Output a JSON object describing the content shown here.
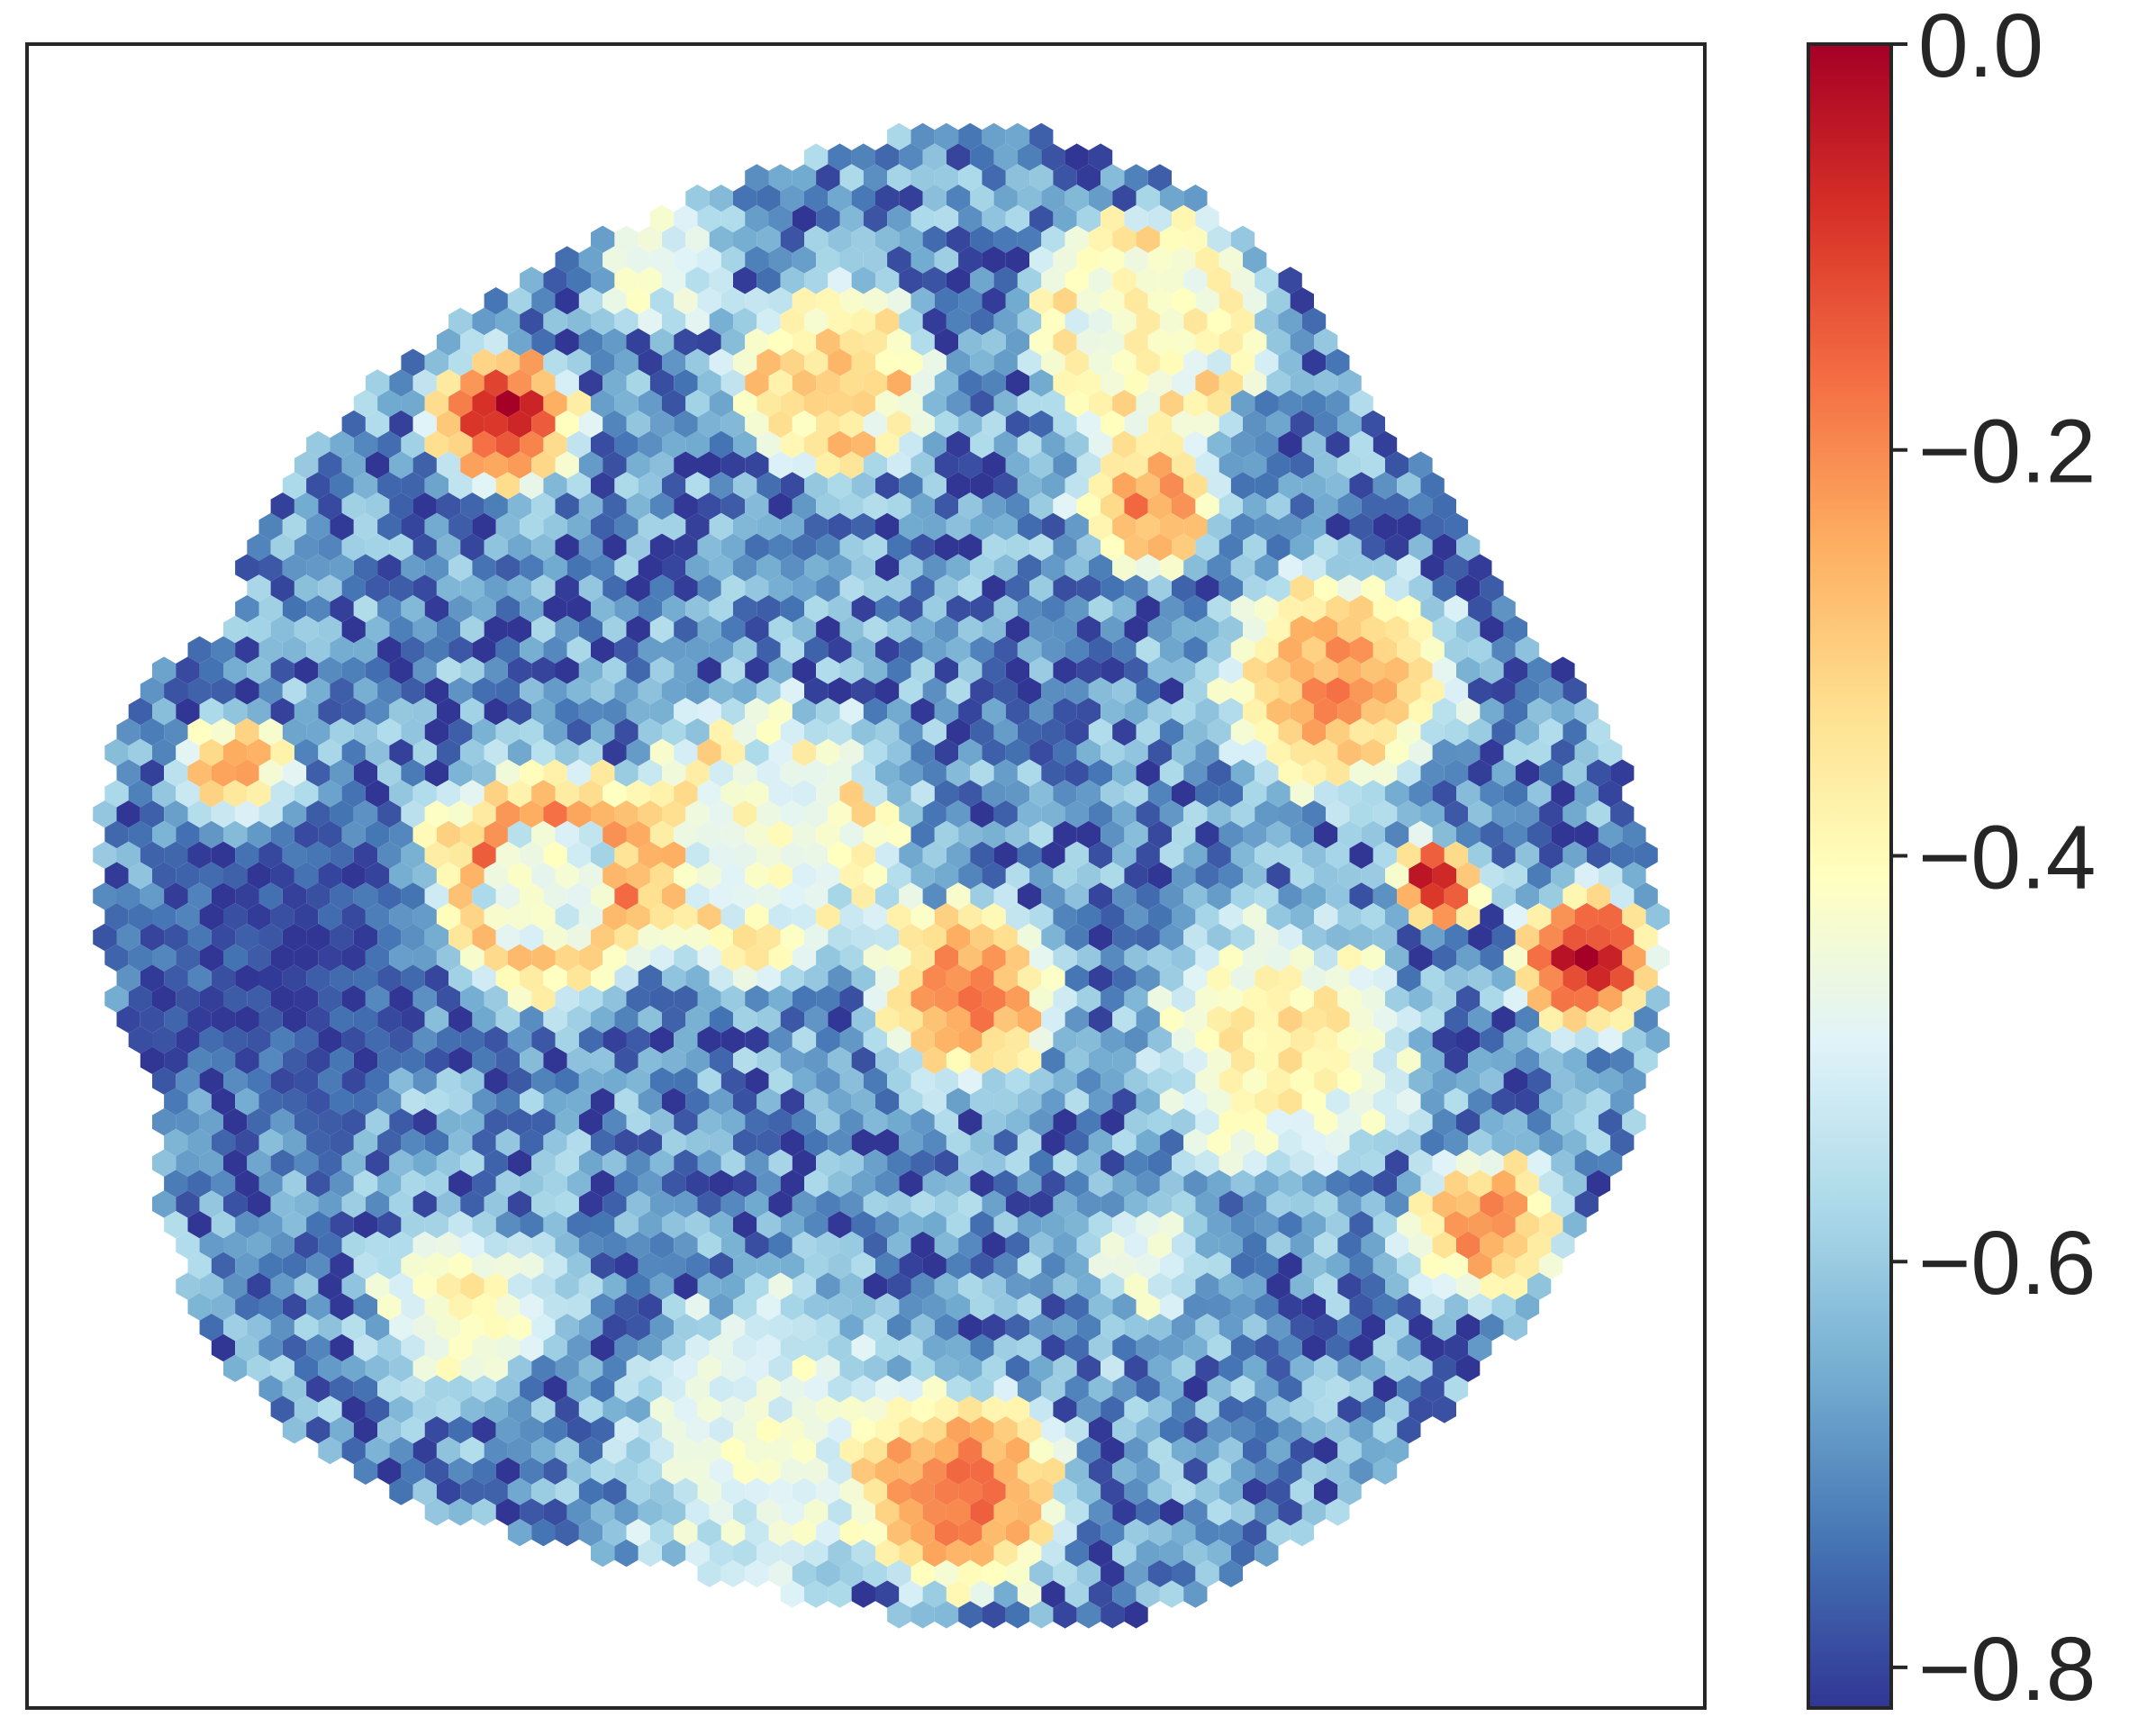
{
  "chart_data": {
    "type": "heatmap",
    "subtype": "hexbin spatial map",
    "title": "",
    "xlabel": "",
    "ylabel": "",
    "axes_ticks": "none",
    "grid": false,
    "colormap": "RdYlBu_r",
    "colorbar": {
      "position": "right",
      "range": [
        -0.82,
        0.0
      ],
      "ticks": [
        0.0,
        -0.2,
        -0.4,
        -0.6,
        -0.8
      ],
      "tick_labels": [
        "0.0",
        "−0.2",
        "−0.4",
        "−0.6",
        "−0.8"
      ]
    },
    "colors": {
      "low": "#313695",
      "mid": "#ffffbf",
      "high": "#a50026",
      "frame": "#262626",
      "gap": "#ffffff"
    },
    "background_value": -0.7,
    "regions": [
      {
        "name": "top-left red blob",
        "cx": 0.285,
        "cy": 0.225,
        "r": 0.055,
        "value": -0.03
      },
      {
        "name": "top ring",
        "cx": 0.38,
        "cy": 0.135,
        "r": 0.05,
        "value": -0.35,
        "hollow": true
      },
      {
        "name": "top center blob",
        "cx": 0.48,
        "cy": 0.2,
        "r": 0.07,
        "value": -0.12,
        "core_value": -0.3
      },
      {
        "name": "top right blob",
        "cx": 0.67,
        "cy": 0.17,
        "r": 0.085,
        "value": -0.15,
        "core_value": -0.38
      },
      {
        "name": "upper right oval",
        "cx": 0.67,
        "cy": 0.275,
        "r": 0.055,
        "value": -0.2
      },
      {
        "name": "right middle blob",
        "cx": 0.78,
        "cy": 0.385,
        "r": 0.09,
        "value": -0.22
      },
      {
        "name": "far right red",
        "cx": 0.93,
        "cy": 0.55,
        "r": 0.055,
        "value": -0.04
      },
      {
        "name": "right small red",
        "cx": 0.84,
        "cy": 0.505,
        "r": 0.035,
        "value": -0.03
      },
      {
        "name": "left small blob",
        "cx": 0.125,
        "cy": 0.44,
        "r": 0.045,
        "value": -0.16
      },
      {
        "name": "left ring",
        "cx": 0.31,
        "cy": 0.505,
        "r": 0.09,
        "value": -0.08,
        "hollow": true
      },
      {
        "name": "center ring",
        "cx": 0.44,
        "cy": 0.48,
        "r": 0.1,
        "value": -0.18,
        "core_value": -0.42
      },
      {
        "name": "center right blob",
        "cx": 0.56,
        "cy": 0.57,
        "r": 0.07,
        "value": -0.17
      },
      {
        "name": "right center yellow",
        "cx": 0.75,
        "cy": 0.6,
        "r": 0.1,
        "value": -0.35
      },
      {
        "name": "bottom right orange",
        "cx": 0.87,
        "cy": 0.71,
        "r": 0.06,
        "value": -0.2
      },
      {
        "name": "bottom left yellow",
        "cx": 0.26,
        "cy": 0.76,
        "r": 0.07,
        "value": -0.38
      },
      {
        "name": "bottom hollow band",
        "cx": 0.44,
        "cy": 0.84,
        "r": 0.11,
        "value": -0.4,
        "hollow": true
      },
      {
        "name": "bottom orange arc",
        "cx": 0.56,
        "cy": 0.87,
        "r": 0.08,
        "value": -0.15
      },
      {
        "name": "bottom ring",
        "cx": 0.67,
        "cy": 0.73,
        "r": 0.07,
        "value": -0.6,
        "hollow": true
      },
      {
        "name": "lower left dark",
        "cx": 0.15,
        "cy": 0.55,
        "r": 0.12,
        "value": -0.8
      }
    ]
  }
}
